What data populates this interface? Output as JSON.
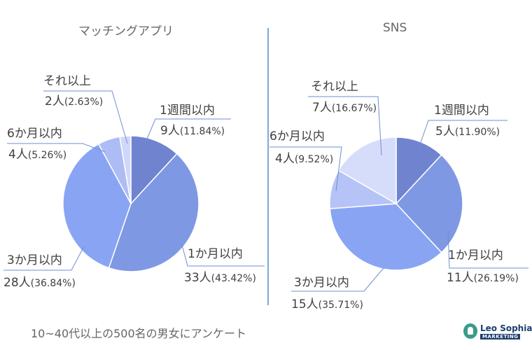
{
  "chart_data": [
    {
      "type": "pie",
      "title": "マッチングアプリ",
      "slices": [
        {
          "label": "1週間以内",
          "count": "9人",
          "percent": "(11.84%)",
          "value": 11.84,
          "color": "#6f83cf"
        },
        {
          "label": "1か月以内",
          "count": "33人",
          "percent": "(43.42%)",
          "value": 43.42,
          "color": "#7f98e4"
        },
        {
          "label": "3か月以内",
          "count": "28人",
          "percent": "(36.84%)",
          "value": 36.84,
          "color": "#8aa4f4"
        },
        {
          "label": "6か月以内",
          "count": "4人",
          "percent": "(5.26%)",
          "value": 5.26,
          "color": "#aebcf5"
        },
        {
          "label": "それ以上",
          "count": "2人",
          "percent": "(2.63%)",
          "value": 2.63,
          "color": "#cfd7fa"
        }
      ]
    },
    {
      "type": "pie",
      "title": "SNS",
      "slices": [
        {
          "label": "1週間以内",
          "count": "5人",
          "percent": "(11.90%)",
          "value": 11.9,
          "color": "#6f83cf"
        },
        {
          "label": "1か月以内",
          "count": "11人",
          "percent": "(26.19%)",
          "value": 26.19,
          "color": "#7f98e4"
        },
        {
          "label": "3か月以内",
          "count": "15人",
          "percent": "(35.71%)",
          "value": 35.71,
          "color": "#8aa4f4"
        },
        {
          "label": "6か月以内",
          "count": "4人",
          "percent": "(9.52%)",
          "value": 9.52,
          "color": "#b6c3f6"
        },
        {
          "label": "それ以上",
          "count": "7人",
          "percent": "(16.67%)",
          "value": 16.67,
          "color": "#d6ddfb"
        }
      ]
    }
  ],
  "footnote": "10~40代以上の500名の男女にアンケート",
  "logo": {
    "name": "Leo Sophia",
    "tag": "MARKETING"
  }
}
